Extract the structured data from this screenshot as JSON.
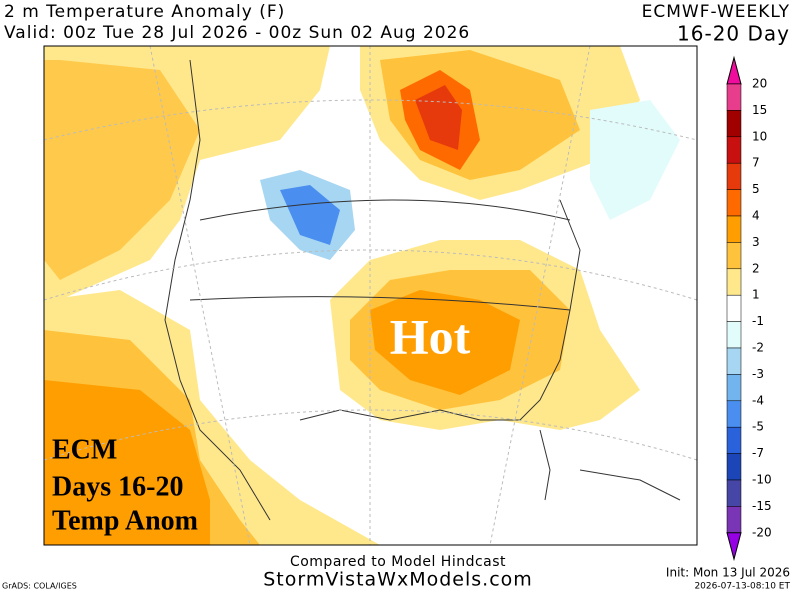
{
  "header": {
    "title": "2 m Temperature Anomaly (F)",
    "valid": "Valid: 00z Tue 28 Jul 2026 - 00z Sun 02 Aug 2026",
    "model": "ECMWF-WEEKLY",
    "range": "16-20 Day"
  },
  "map": {
    "annotation": "Hot",
    "overlay": [
      "ECM",
      "Days 16-20",
      "Temp Anom"
    ]
  },
  "colorbar": {
    "labels": [
      20,
      15,
      10,
      7,
      5,
      4,
      3,
      2,
      1,
      -1,
      -2,
      -3,
      -4,
      -5,
      -7,
      -10,
      -15,
      -20
    ],
    "colors": [
      "#f00c9c",
      "#e83c8c",
      "#a00000",
      "#c81010",
      "#e63a0c",
      "#ff6a00",
      "#ff9e00",
      "#ffc23c",
      "#ffe88c",
      "#ffffff",
      "#e2fcfc",
      "#a6d6f2",
      "#72b4ee",
      "#4a8ef0",
      "#2a62dc",
      "#1c46b8",
      "#4646a6",
      "#7a34b6",
      "#9600e4"
    ]
  },
  "footer": {
    "compared": "Compared to Model Hindcast",
    "site": "StormVistaWxModels.com",
    "init": "Init: Mon 13 Jul 2026",
    "timestamp": "2026-07-13-08:10 ET",
    "credit": "GrADS: COLA/IGES"
  }
}
